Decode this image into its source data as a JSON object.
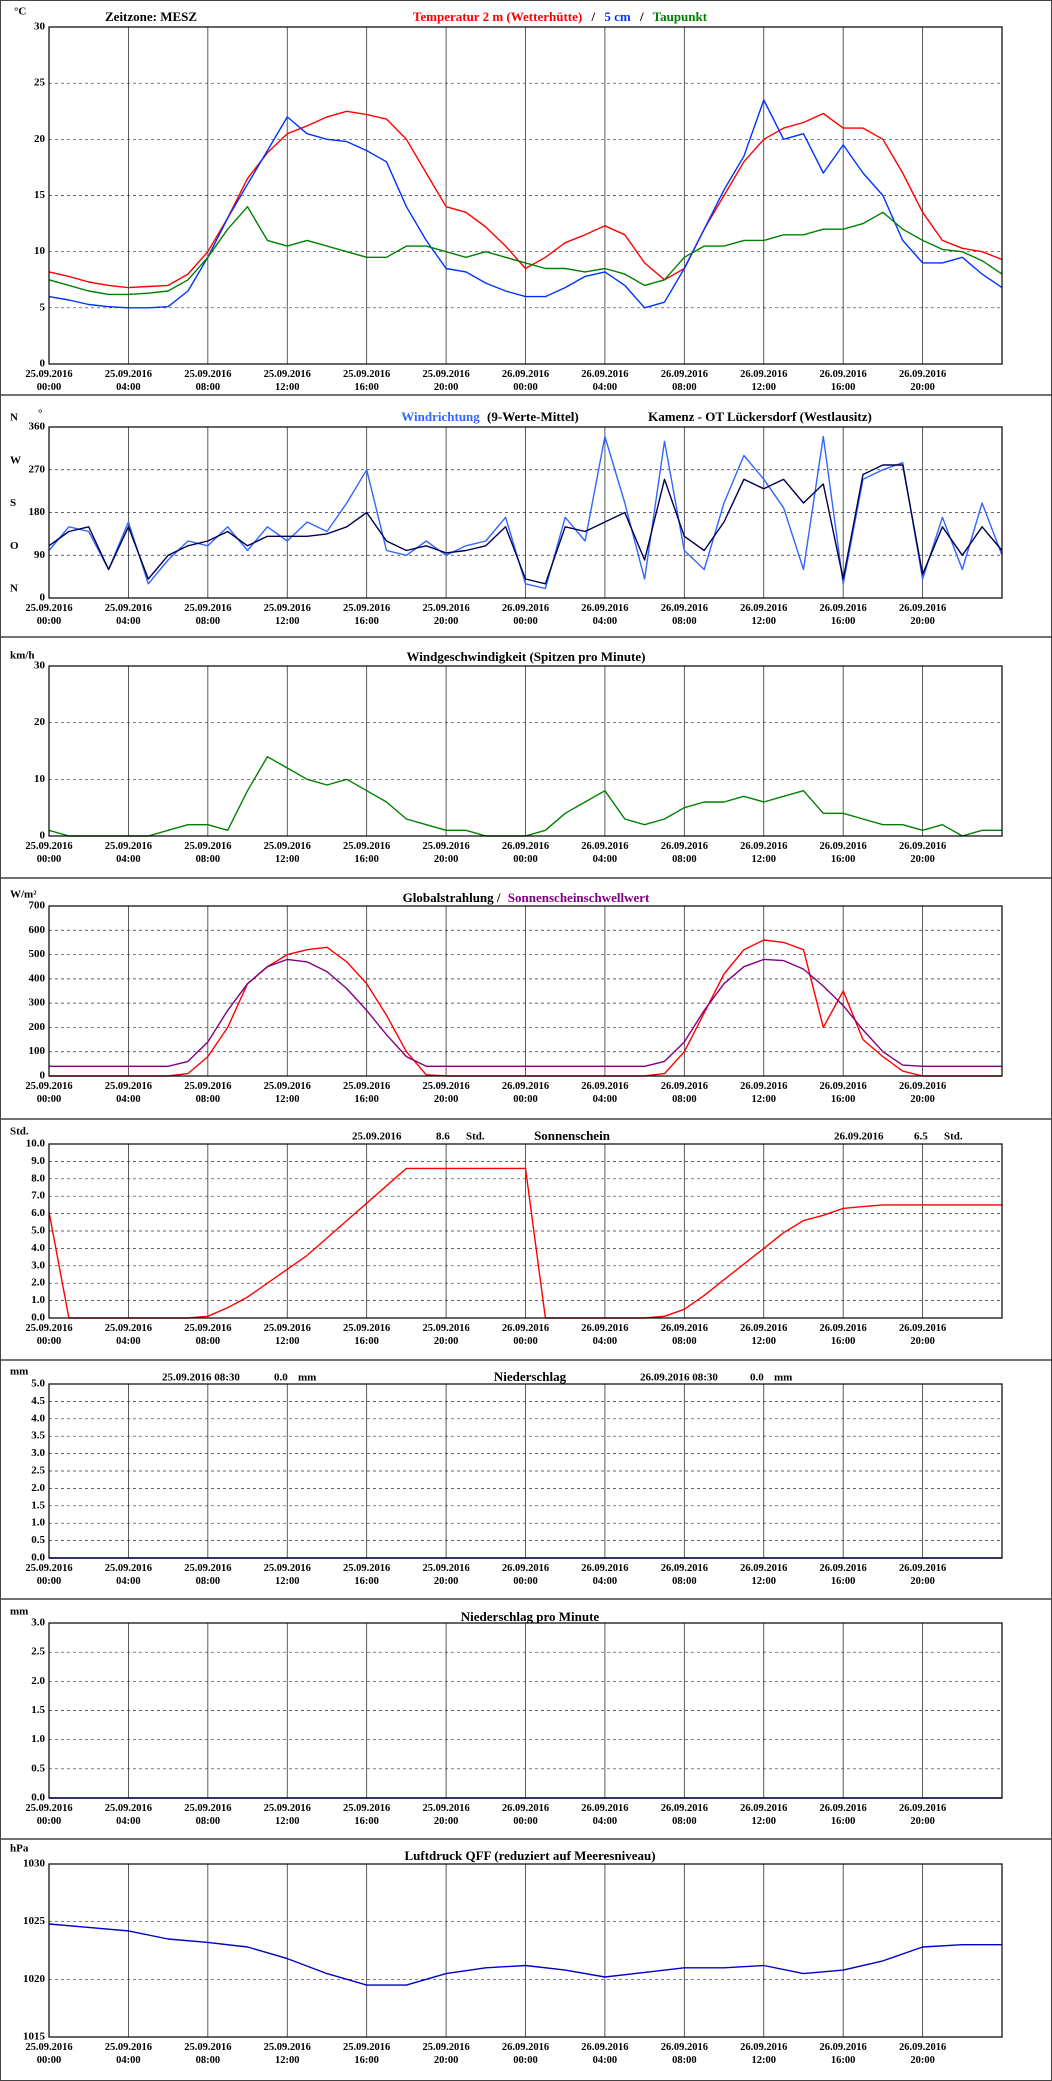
{
  "time_axis": {
    "xlim": [
      0,
      48
    ],
    "xticks": [
      {
        "value": 0,
        "label": "25.09.2016 00:00"
      },
      {
        "value": 4,
        "label": "25.09.2016 04:00"
      },
      {
        "value": 8,
        "label": "25.09.2016 08:00"
      },
      {
        "value": 12,
        "label": "25.09.2016 12:00"
      },
      {
        "value": 16,
        "label": "25.09.2016 16:00"
      },
      {
        "value": 20,
        "label": "25.09.2016 20:00"
      },
      {
        "value": 24,
        "label": "26.09.2016 00:00"
      },
      {
        "value": 28,
        "label": "26.09.2016 04:00"
      },
      {
        "value": 32,
        "label": "26.09.2016 08:00"
      },
      {
        "value": 36,
        "label": "26.09.2016 12:00"
      },
      {
        "value": 40,
        "label": "26.09.2016 16:00"
      },
      {
        "value": 44,
        "label": "26.09.2016 20:00"
      }
    ]
  },
  "chart_data": [
    {
      "type": "line",
      "unit": "°C",
      "timezone": "Zeitzone: MESZ",
      "legend_separator": "/",
      "ylim": [
        0,
        30
      ],
      "yticks": [
        0,
        5,
        10,
        15,
        20,
        25,
        30
      ],
      "x": [
        0,
        1,
        2,
        3,
        4,
        5,
        6,
        7,
        8,
        9,
        10,
        11,
        12,
        13,
        14,
        15,
        16,
        17,
        18,
        19,
        20,
        21,
        22,
        23,
        24,
        25,
        26,
        27,
        28,
        29,
        30,
        31,
        32,
        33,
        34,
        35,
        36,
        37,
        38,
        39,
        40,
        41,
        42,
        43,
        44,
        45,
        46,
        47,
        48
      ],
      "series": [
        {
          "name": "Temperatur 2 m (Wetterhütte)",
          "color": "#ff0000",
          "values": [
            8.2,
            7.8,
            7.3,
            7.0,
            6.8,
            6.9,
            7.0,
            8.0,
            10,
            13,
            16.5,
            18.8,
            20.5,
            21.2,
            22,
            22.5,
            22.2,
            21.8,
            20,
            17,
            14,
            13.5,
            12.2,
            10.5,
            8.5,
            9.5,
            10.8,
            11.5,
            12.3,
            11.5,
            9,
            7.5,
            8.5,
            12,
            15,
            18,
            20,
            21,
            21.5,
            22.3,
            21,
            21,
            20,
            17,
            13.5,
            11,
            10.3,
            10,
            9.3
          ]
        },
        {
          "name": "5 cm",
          "color": "#0033ff",
          "values": [
            6.0,
            5.7,
            5.3,
            5.1,
            5.0,
            5.0,
            5.1,
            6.5,
            9.5,
            13,
            16,
            19,
            22,
            20.5,
            20,
            19.8,
            19,
            18,
            14,
            11,
            8.5,
            8.2,
            7.2,
            6.5,
            6,
            6.0,
            6.8,
            7.8,
            8.2,
            7,
            5,
            5.5,
            8.5,
            12,
            15.5,
            18.5,
            23.5,
            20,
            20.5,
            17,
            19.5,
            17,
            15,
            11,
            9,
            9,
            9.5,
            8,
            6.8
          ]
        },
        {
          "name": "Taupunkt",
          "color": "#008000",
          "values": [
            7.5,
            7.0,
            6.5,
            6.2,
            6.2,
            6.3,
            6.5,
            7.5,
            9.5,
            12,
            14,
            11,
            10.5,
            11,
            10.5,
            10,
            9.5,
            9.5,
            10.5,
            10.5,
            10,
            9.5,
            10,
            9.5,
            9,
            8.5,
            8.5,
            8.2,
            8.5,
            8,
            7,
            7.5,
            9.5,
            10.5,
            10.5,
            11,
            11,
            11.5,
            11.5,
            12,
            12,
            12.5,
            13.5,
            12,
            11,
            10.2,
            10,
            9.2,
            8
          ]
        }
      ]
    },
    {
      "type": "line",
      "unit": "°",
      "station": "Kamenz - OT Lückersdorf (Westlausitz)",
      "compass": [
        "N",
        "O",
        "S",
        "W",
        "N"
      ],
      "ylim": [
        0,
        360
      ],
      "yticks": [
        0,
        90,
        180,
        270,
        360
      ],
      "x": [
        0,
        1,
        2,
        3,
        4,
        5,
        6,
        7,
        8,
        9,
        10,
        11,
        12,
        13,
        14,
        15,
        16,
        17,
        18,
        19,
        20,
        21,
        22,
        23,
        24,
        25,
        26,
        27,
        28,
        29,
        30,
        31,
        32,
        33,
        34,
        35,
        36,
        37,
        38,
        39,
        40,
        41,
        42,
        43,
        44,
        45,
        46,
        47,
        48
      ],
      "series": [
        {
          "name": "Windrichtung",
          "color": "#3366ff",
          "values": [
            100,
            150,
            140,
            60,
            160,
            30,
            80,
            120,
            110,
            150,
            100,
            150,
            120,
            160,
            140,
            200,
            270,
            100,
            90,
            120,
            90,
            110,
            120,
            170,
            30,
            20,
            170,
            120,
            340,
            200,
            40,
            330,
            100,
            60,
            200,
            300,
            250,
            190,
            60,
            340,
            30,
            250,
            270,
            285,
            40,
            170,
            60,
            200,
            90
          ]
        },
        {
          "name": "(9-Werte-Mittel)",
          "color": "#000050",
          "values": [
            110,
            140,
            150,
            60,
            150,
            40,
            90,
            110,
            120,
            140,
            110,
            130,
            130,
            130,
            135,
            150,
            180,
            120,
            100,
            110,
            95,
            100,
            110,
            150,
            40,
            30,
            150,
            140,
            160,
            180,
            80,
            250,
            130,
            100,
            160,
            250,
            230,
            250,
            200,
            240,
            40,
            260,
            280,
            280,
            50,
            150,
            90,
            150,
            100
          ]
        }
      ]
    },
    {
      "type": "line",
      "unit": "km/h",
      "title": "Windgeschwindigkeit (Spitzen pro Minute)",
      "ylim": [
        0,
        30
      ],
      "yticks": [
        0,
        10,
        20,
        30
      ],
      "x": [
        0,
        1,
        2,
        3,
        4,
        5,
        6,
        7,
        8,
        9,
        10,
        11,
        12,
        13,
        14,
        15,
        16,
        17,
        18,
        19,
        20,
        21,
        22,
        23,
        24,
        25,
        26,
        27,
        28,
        29,
        30,
        31,
        32,
        33,
        34,
        35,
        36,
        37,
        38,
        39,
        40,
        41,
        42,
        43,
        44,
        45,
        46,
        47,
        48
      ],
      "series": [
        {
          "color": "#008000",
          "values": [
            1,
            0,
            0,
            0,
            0,
            0,
            1,
            2,
            2,
            1,
            8,
            14,
            12,
            10,
            9,
            10,
            8,
            6,
            3,
            2,
            1,
            1,
            0,
            0,
            0,
            1,
            4,
            6,
            8,
            3,
            2,
            3,
            5,
            6,
            6,
            7,
            6,
            7,
            8,
            4,
            4,
            3,
            2,
            2,
            1,
            2,
            0,
            1,
            1
          ]
        }
      ]
    },
    {
      "type": "line",
      "unit": "W/m²",
      "legend_separator": "/",
      "ylim": [
        0,
        700
      ],
      "yticks": [
        0,
        100,
        200,
        300,
        400,
        500,
        600,
        700
      ],
      "x": [
        0,
        1,
        2,
        3,
        4,
        5,
        6,
        7,
        8,
        9,
        10,
        11,
        12,
        13,
        14,
        15,
        16,
        17,
        18,
        19,
        20,
        21,
        22,
        23,
        24,
        25,
        26,
        27,
        28,
        29,
        30,
        31,
        32,
        33,
        34,
        35,
        36,
        37,
        38,
        39,
        40,
        41,
        42,
        43,
        44,
        45,
        46,
        47,
        48
      ],
      "series": [
        {
          "name": "Globalstrahlung",
          "color": "#ff0000",
          "values": [
            0,
            0,
            0,
            0,
            0,
            0,
            0,
            10,
            80,
            200,
            380,
            450,
            500,
            520,
            530,
            470,
            380,
            250,
            100,
            5,
            0,
            0,
            0,
            0,
            0,
            0,
            0,
            0,
            0,
            0,
            0,
            10,
            100,
            260,
            420,
            520,
            560,
            550,
            520,
            200,
            350,
            150,
            80,
            20,
            0,
            0,
            0,
            0,
            0
          ]
        },
        {
          "name": "Sonnenscheinschwellwert",
          "color": "#800080",
          "values": [
            40,
            40,
            40,
            40,
            40,
            40,
            40,
            60,
            140,
            270,
            380,
            450,
            480,
            470,
            430,
            360,
            270,
            170,
            80,
            40,
            40,
            40,
            40,
            40,
            40,
            40,
            40,
            40,
            40,
            40,
            40,
            60,
            140,
            270,
            380,
            450,
            480,
            475,
            440,
            370,
            290,
            190,
            100,
            45,
            40,
            40,
            40,
            40,
            40
          ]
        }
      ]
    },
    {
      "type": "line",
      "unit": "Std.",
      "title": "Sonnenschein",
      "totals": [
        {
          "date": "25.09.2016",
          "value": 8.6,
          "unit": "Std."
        },
        {
          "date": "26.09.2016",
          "value": 6.5,
          "unit": "Std."
        }
      ],
      "ylim": [
        0,
        10
      ],
      "yticks": [
        {
          "value": 0,
          "label": "0.0"
        },
        {
          "value": 1,
          "label": "1.0"
        },
        {
          "value": 2,
          "label": "2.0"
        },
        {
          "value": 3,
          "label": "3.0"
        },
        {
          "value": 4,
          "label": "4.0"
        },
        {
          "value": 5,
          "label": "5.0"
        },
        {
          "value": 6,
          "label": "6.0"
        },
        {
          "value": 7,
          "label": "7.0"
        },
        {
          "value": 8,
          "label": "8.0"
        },
        {
          "value": 9,
          "label": "9.0"
        },
        {
          "value": 10,
          "label": "10.0"
        }
      ],
      "x": [
        0,
        1,
        2,
        3,
        4,
        5,
        6,
        7,
        8,
        9,
        10,
        11,
        12,
        13,
        14,
        15,
        16,
        17,
        18,
        19,
        20,
        21,
        22,
        23,
        24,
        25,
        26,
        27,
        28,
        29,
        30,
        31,
        32,
        33,
        34,
        35,
        36,
        37,
        38,
        39,
        40,
        41,
        42,
        43,
        44,
        45,
        46,
        47,
        48
      ],
      "series": [
        {
          "color": "#ff0000",
          "values": [
            6.1,
            0,
            0,
            0,
            0,
            0,
            0,
            0,
            0.1,
            0.6,
            1.2,
            2.0,
            2.8,
            3.6,
            4.6,
            5.6,
            6.6,
            7.6,
            8.6,
            8.6,
            8.6,
            8.6,
            8.6,
            8.6,
            8.6,
            0,
            0,
            0,
            0,
            0,
            0,
            0.1,
            0.5,
            1.3,
            2.2,
            3.1,
            4.0,
            4.9,
            5.6,
            5.9,
            6.3,
            6.4,
            6.5,
            6.5,
            6.5,
            6.5,
            6.5,
            6.5,
            6.5
          ]
        }
      ]
    },
    {
      "type": "line",
      "unit": "mm",
      "title": "Niederschlag",
      "totals": [
        {
          "date": "25.09.2016 08:30",
          "value": 0,
          "value_label": "0.0",
          "unit": "mm"
        },
        {
          "date": "26.09.2016 08:30",
          "value": 0,
          "value_label": "0.0",
          "unit": "mm"
        }
      ],
      "ylim": [
        0,
        5
      ],
      "yticks": [
        {
          "value": 0,
          "label": "0.0"
        },
        {
          "value": 0.5,
          "label": "0.5"
        },
        {
          "value": 1,
          "label": "1.0"
        },
        {
          "value": 1.5,
          "label": "1.5"
        },
        {
          "value": 2,
          "label": "2.0"
        },
        {
          "value": 2.5,
          "label": "2.5"
        },
        {
          "value": 3,
          "label": "3.0"
        },
        {
          "value": 3.5,
          "label": "3.5"
        },
        {
          "value": 4,
          "label": "4.0"
        },
        {
          "value": 4.5,
          "label": "4.5"
        },
        {
          "value": 5,
          "label": "5.0"
        }
      ],
      "x": [
        0,
        48
      ],
      "series": [
        {
          "color": "#0000ff",
          "values": [
            0,
            0
          ]
        }
      ]
    },
    {
      "type": "line",
      "unit": "mm",
      "title": "Niederschlag pro Minute",
      "ylim": [
        0,
        3
      ],
      "yticks": [
        {
          "value": 0,
          "label": "0.0"
        },
        {
          "value": 0.5,
          "label": "0.5"
        },
        {
          "value": 1,
          "label": "1.0"
        },
        {
          "value": 1.5,
          "label": "1.5"
        },
        {
          "value": 2,
          "label": "2.0"
        },
        {
          "value": 2.5,
          "label": "2.5"
        },
        {
          "value": 3,
          "label": "3.0"
        }
      ],
      "x": [
        0,
        48
      ],
      "series": [
        {
          "color": "#0000ff",
          "values": [
            0,
            0
          ]
        }
      ]
    },
    {
      "type": "line",
      "unit": "hPa",
      "title": "Luftdruck QFF (reduziert auf Meeresniveau)",
      "ylim": [
        1015,
        1030
      ],
      "yticks": [
        1015,
        1020,
        1025,
        1030
      ],
      "x": [
        0,
        2,
        4,
        6,
        8,
        10,
        12,
        14,
        16,
        18,
        20,
        22,
        24,
        26,
        28,
        30,
        32,
        34,
        36,
        38,
        40,
        42,
        44,
        46,
        48
      ],
      "series": [
        {
          "color": "#0000cc",
          "values": [
            1024.8,
            1024.5,
            1024.2,
            1023.5,
            1023.2,
            1022.8,
            1021.8,
            1020.5,
            1019.5,
            1019.5,
            1020.5,
            1021,
            1021.2,
            1020.8,
            1020.2,
            1020.6,
            1021,
            1021,
            1021.2,
            1020.5,
            1020.8,
            1021.6,
            1022.8,
            1023.0,
            1023.0
          ]
        }
      ]
    }
  ]
}
